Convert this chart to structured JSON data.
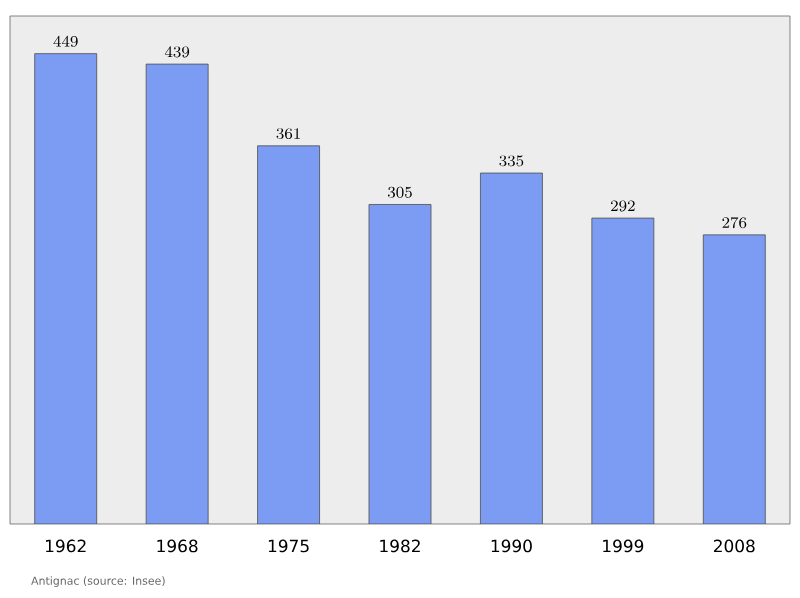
{
  "chart_data": {
    "type": "bar",
    "categories": [
      "1962",
      "1968",
      "1975",
      "1982",
      "1990",
      "1999",
      "2008"
    ],
    "values": [
      449,
      439,
      361,
      305,
      335,
      292,
      276
    ],
    "color": "#7b9cf2",
    "data_labels": true,
    "tick_labels": "x",
    "annotations": [
      "Antignac    (source: Insee)"
    ]
  }
}
